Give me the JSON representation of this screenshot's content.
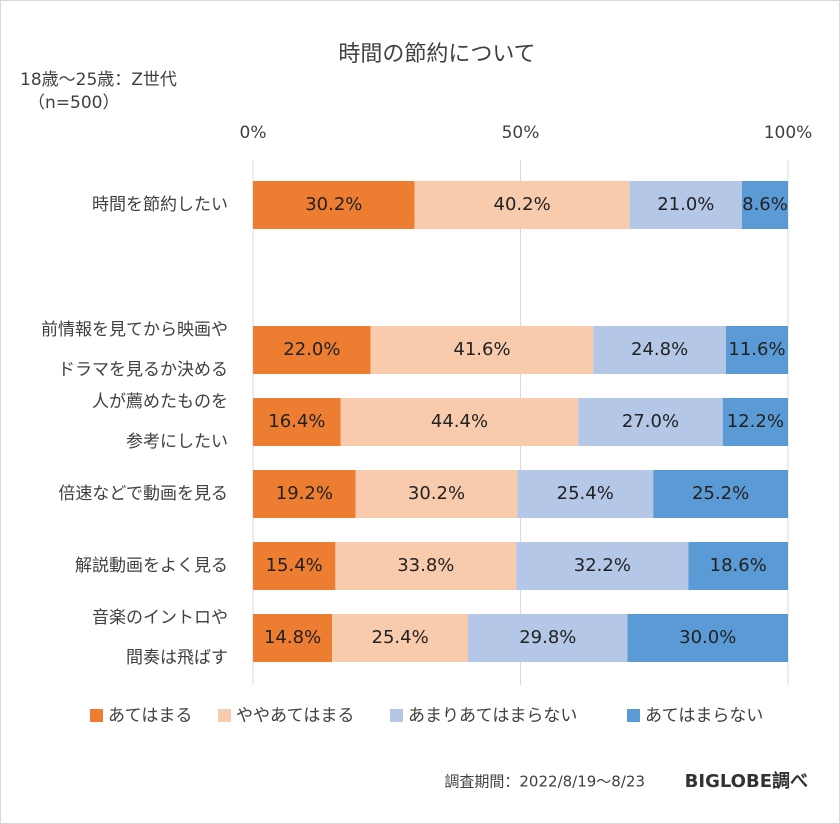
{
  "chart_data": {
    "type": "stacked-bar-horizontal",
    "title": "時間の節約について",
    "subtitle": [
      "18歳～25歳：Z世代",
      "（n=500）"
    ],
    "categories": [
      [
        "時間を節約したい"
      ],
      [
        "前情報を見てから映画や",
        "ドラマを見るか決める"
      ],
      [
        "人が薦めたものを",
        "参考にしたい"
      ],
      [
        "倍速などで動画を見る"
      ],
      [
        "解説動画をよく見る"
      ],
      [
        "音楽のイントロや",
        "間奏は飛ばす"
      ]
    ],
    "series": [
      {
        "name": "あてはまる",
        "color": "#ed7d31",
        "values": [
          30.2,
          22.0,
          16.4,
          19.2,
          15.4,
          14.8
        ],
        "value_labels": [
          "30.2%",
          "22.0%",
          "16.4%",
          "19.2%",
          "15.4%",
          "14.8%"
        ]
      },
      {
        "name": "ややあてはまる",
        "color": "#f8cbad",
        "values": [
          40.2,
          41.6,
          44.4,
          30.2,
          33.8,
          25.4
        ],
        "value_labels": [
          "40.2%",
          "41.6%",
          "44.4%",
          "30.2%",
          "33.8%",
          "25.4%"
        ]
      },
      {
        "name": "あまりあてはまらない",
        "color": "#b4c7e7",
        "values": [
          21.0,
          24.8,
          27.0,
          25.4,
          32.2,
          29.8
        ],
        "value_labels": [
          "21.0%",
          "24.8%",
          "27.0%",
          "25.4%",
          "32.2%",
          "29.8%"
        ]
      },
      {
        "name": "あてはまらない",
        "color": "#5b9bd5",
        "values": [
          8.6,
          11.6,
          12.2,
          25.2,
          18.6,
          30.0
        ],
        "value_labels": [
          "8.6%",
          "11.6%",
          "12.2%",
          "25.2%",
          "18.6%",
          "30.0%"
        ]
      }
    ],
    "xlim": [
      0,
      100
    ],
    "xticks": [
      {
        "value": 0,
        "label": "0%"
      },
      {
        "value": 50,
        "label": "50%"
      },
      {
        "value": 100,
        "label": "100%"
      }
    ],
    "grid": true,
    "legend": "bottom",
    "footer": {
      "period": "調査期間：2022/8/19～8/23",
      "source": "BIGLOBE調べ"
    }
  }
}
